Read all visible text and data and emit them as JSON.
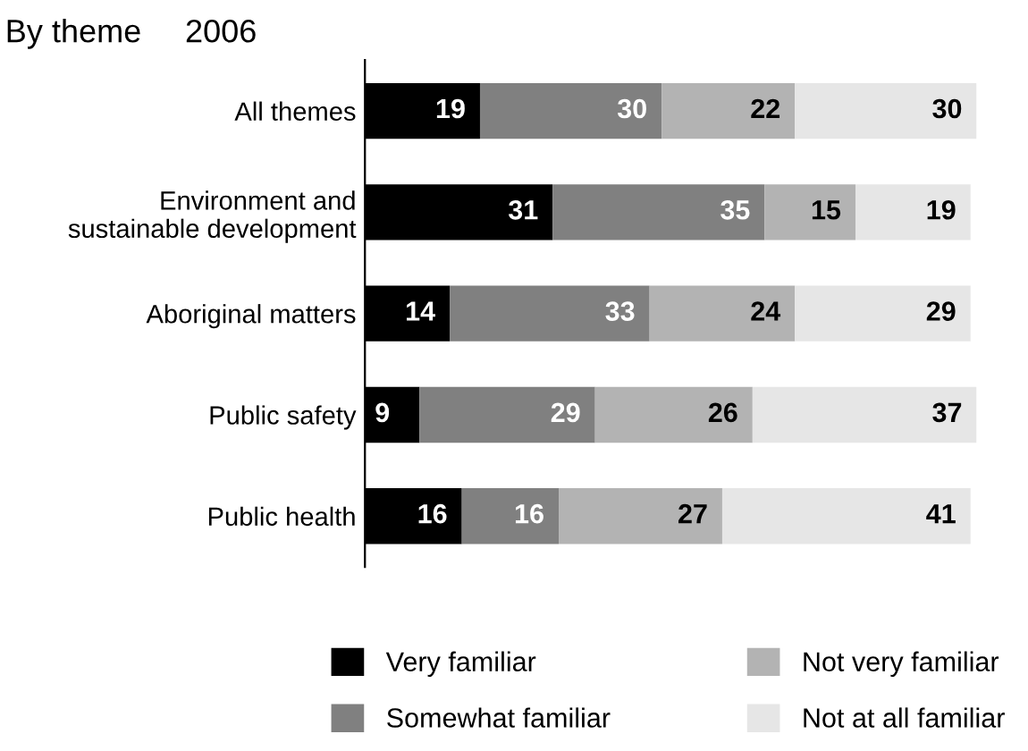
{
  "chart_data": {
    "type": "bar",
    "orientation": "horizontal",
    "stacked": true,
    "title": "By theme",
    "subtitle": "2006",
    "categories": [
      "All themes",
      "Environment and\nsustainable development",
      "Aboriginal matters",
      "Public safety",
      "Public health"
    ],
    "series": [
      {
        "name": "Very familiar",
        "color": "#000000",
        "values": [
          19,
          31,
          14,
          9,
          16
        ]
      },
      {
        "name": "Somewhat familiar",
        "color": "#808080",
        "values": [
          30,
          35,
          33,
          29,
          16
        ]
      },
      {
        "name": "Not very familiar",
        "color": "#b3b3b3",
        "values": [
          22,
          15,
          24,
          26,
          27
        ]
      },
      {
        "name": "Not at all familiar",
        "color": "#e6e6e6",
        "values": [
          30,
          19,
          29,
          37,
          41
        ]
      }
    ],
    "data_labels": true,
    "legend": "bottom",
    "grid": false,
    "tick_labels": "y"
  }
}
